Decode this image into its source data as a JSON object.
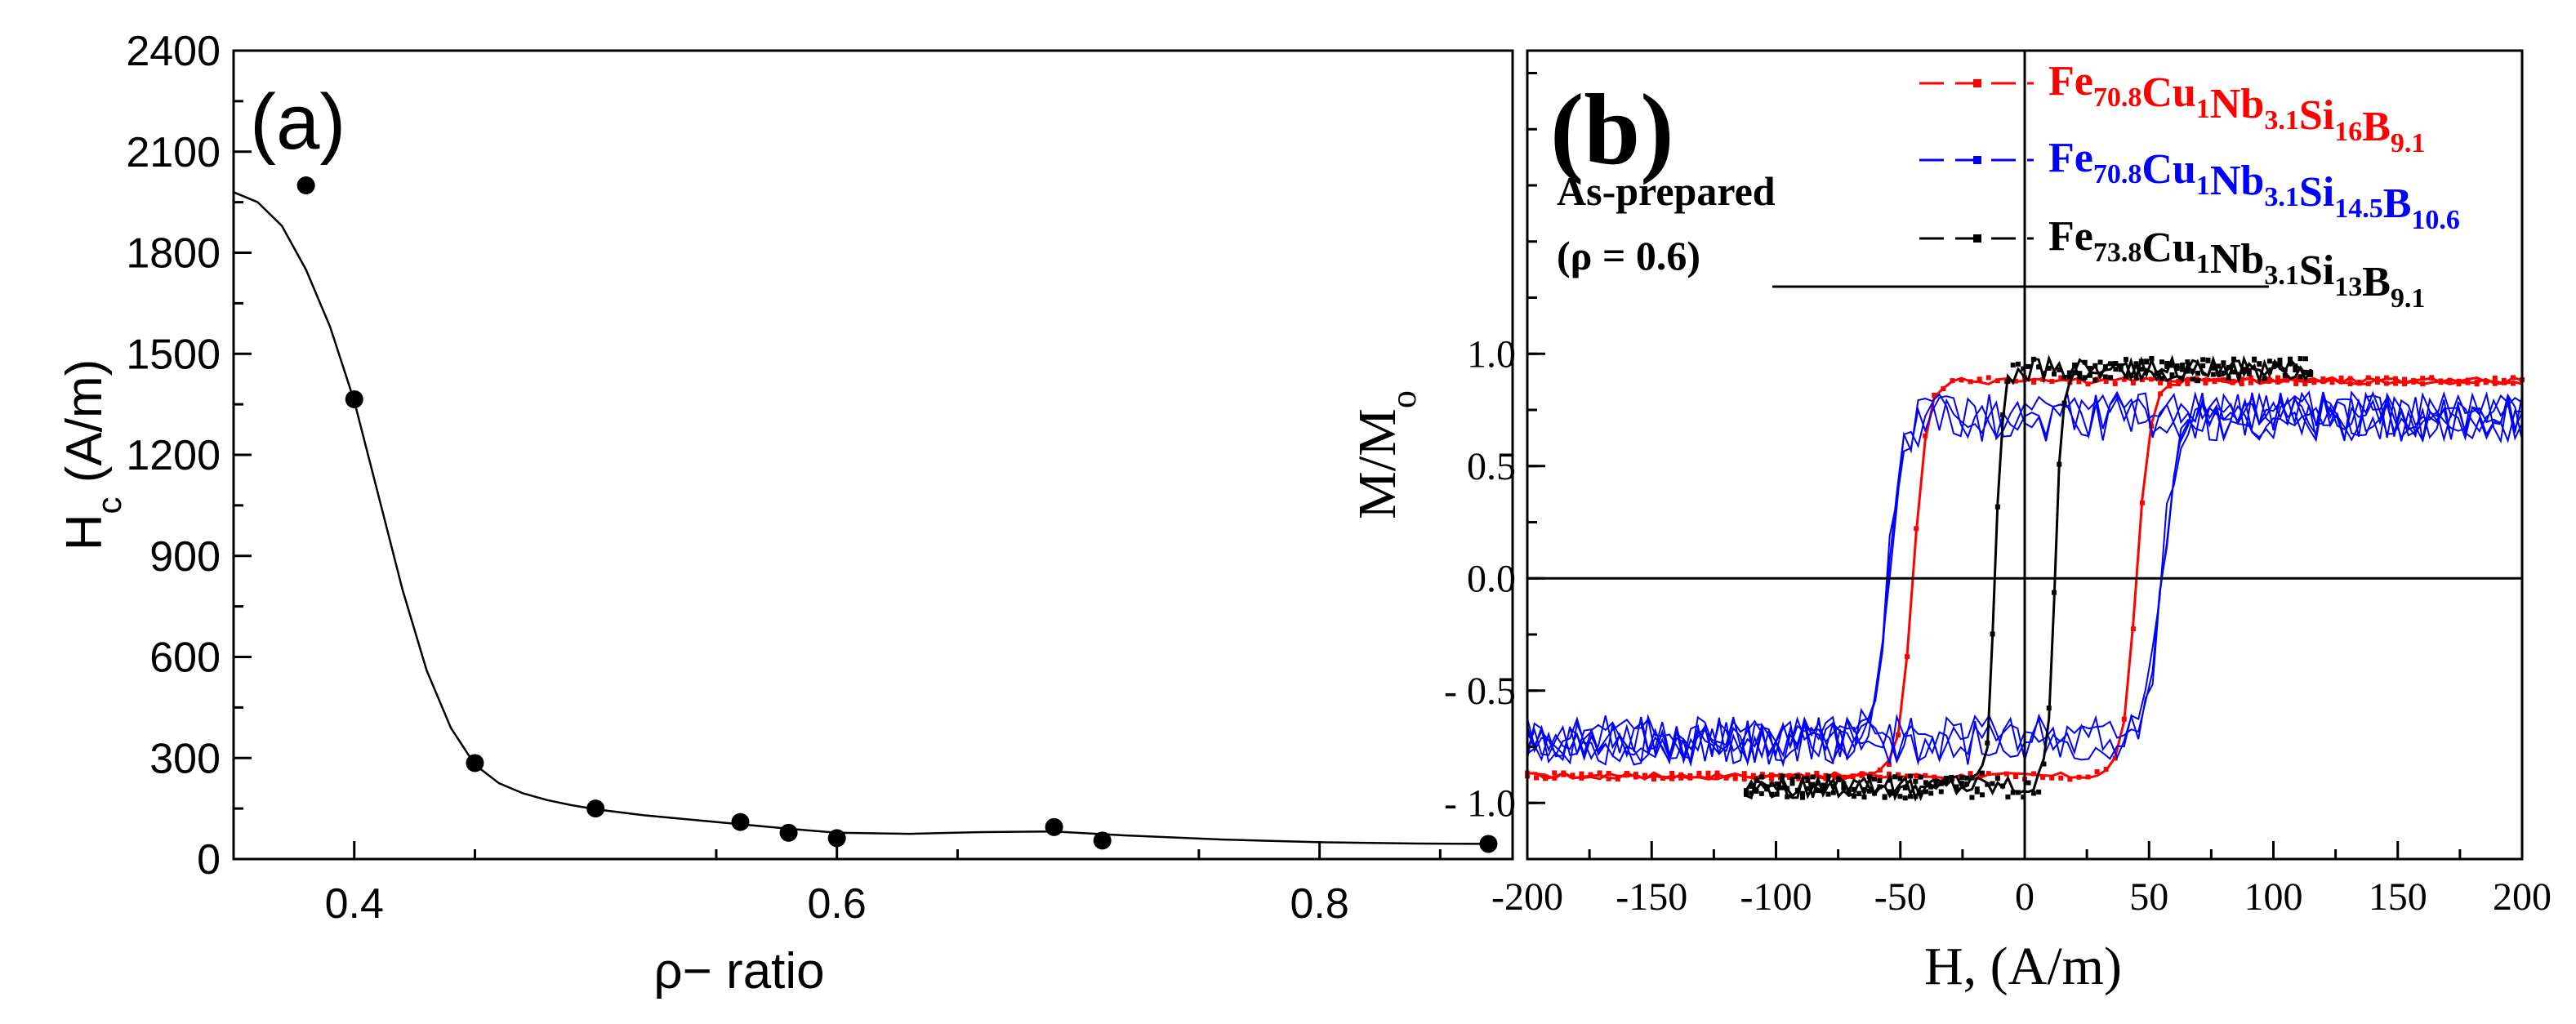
{
  "chart_data": [
    {
      "type": "scatter",
      "panel_label": "(a)",
      "xlabel": "ρ− ratio",
      "ylabel_main": "H",
      "ylabel_sub": "c",
      "ylabel_unit": " (A/m)",
      "xlim": [
        0.35,
        0.88
      ],
      "ylim": [
        0,
        2400
      ],
      "x_ticks": [
        0.4,
        0.6,
        0.8
      ],
      "x_tick_labels": [
        "0.4",
        "0.6",
        "0.8"
      ],
      "y_ticks": [
        0,
        300,
        600,
        900,
        1200,
        1500,
        1800,
        2100,
        2400
      ],
      "y_tick_labels": [
        "0",
        "300",
        "600",
        "900",
        "1200",
        "1500",
        "1800",
        "2100",
        "2400"
      ],
      "grid": false,
      "series": [
        {
          "kind": "points",
          "color": "#000000",
          "x": [
            0.38,
            0.4,
            0.45,
            0.5,
            0.56,
            0.58,
            0.6,
            0.69,
            0.71,
            0.87
          ],
          "y": [
            2000,
            1365,
            285,
            150,
            110,
            78,
            62,
            95,
            55,
            45
          ]
        },
        {
          "kind": "fit-curve",
          "color": "#000000",
          "x": [
            0.35,
            0.36,
            0.37,
            0.38,
            0.39,
            0.4,
            0.41,
            0.42,
            0.43,
            0.44,
            0.45,
            0.46,
            0.47,
            0.48,
            0.49,
            0.5,
            0.52,
            0.55,
            0.58,
            0.6,
            0.63,
            0.66,
            0.69,
            0.72,
            0.76,
            0.8,
            0.84,
            0.87
          ],
          "y": [
            1980,
            1950,
            1880,
            1750,
            1580,
            1360,
            1080,
            800,
            560,
            390,
            280,
            225,
            195,
            175,
            160,
            148,
            130,
            110,
            90,
            78,
            75,
            80,
            82,
            70,
            58,
            50,
            46,
            45
          ]
        }
      ]
    },
    {
      "type": "line",
      "panel_label": "(b)",
      "annotation_line1": "As-prepared",
      "annotation_line2": "(ρ = 0.6)",
      "xlabel": "H, (A/m)",
      "ylabel_main": "M/M",
      "ylabel_sub": "o",
      "xlim": [
        -200,
        200
      ],
      "ylim": [
        -1.25,
        2.35
      ],
      "x_ticks": [
        -200,
        -150,
        -100,
        -50,
        0,
        50,
        100,
        150,
        200
      ],
      "x_tick_labels": [
        "-200",
        "-150",
        "-100",
        "-50",
        "0",
        "50",
        "100",
        "150",
        "200"
      ],
      "y_ticks": [
        -1.0,
        -0.5,
        0.0,
        0.5,
        1.0
      ],
      "y_tick_labels": [
        "- 1.0",
        "- 0.5",
        "0.0",
        "0.5",
        "1.0"
      ],
      "grid": false,
      "legend_position": "top-right",
      "series": [
        {
          "name_parts": [
            [
              "Fe",
              ""
            ],
            [
              "70.8",
              "sub"
            ],
            [
              "Cu",
              ""
            ],
            [
              "1",
              "sub"
            ],
            [
              "Nb",
              ""
            ],
            [
              "3.1",
              "sub"
            ],
            [
              "Si",
              ""
            ],
            [
              "16",
              "sub"
            ],
            [
              "B",
              ""
            ],
            [
              "9.1",
              "sub"
            ]
          ],
          "color": "#ff0000",
          "saturation": 0.88,
          "coercive_field": 45,
          "h_range": [
            -200,
            200
          ],
          "noise": 0.015
        },
        {
          "name_parts": [
            [
              "Fe",
              ""
            ],
            [
              "70.8",
              "sub"
            ],
            [
              "Cu",
              ""
            ],
            [
              "1",
              "sub"
            ],
            [
              "Nb",
              ""
            ],
            [
              "3.1",
              "sub"
            ],
            [
              "Si",
              ""
            ],
            [
              "14.5",
              "sub"
            ],
            [
              "B",
              ""
            ],
            [
              "10.6",
              "sub"
            ]
          ],
          "color": "#0000ff",
          "saturation": 0.72,
          "coercive_field": 55,
          "h_range": [
            -200,
            200
          ],
          "noise": 0.11
        },
        {
          "name_parts": [
            [
              "Fe",
              ""
            ],
            [
              "73.8",
              "sub"
            ],
            [
              "Cu",
              ""
            ],
            [
              "1",
              "sub"
            ],
            [
              "Nb",
              ""
            ],
            [
              "3.1",
              "sub"
            ],
            [
              "Si",
              ""
            ],
            [
              "13",
              "sub"
            ],
            [
              "B",
              ""
            ],
            [
              "9.1",
              "sub"
            ]
          ],
          "color": "#000000",
          "saturation": 0.93,
          "coercive_field": 12,
          "h_range": [
            -112,
            115
          ],
          "noise": 0.05
        }
      ]
    }
  ]
}
